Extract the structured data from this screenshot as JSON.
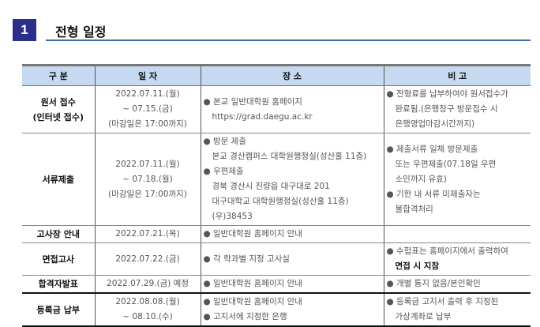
{
  "section": {
    "number": "1",
    "title": "전형 일정"
  },
  "headers": [
    "구 분",
    "일 자",
    "장 소",
    "비 고"
  ],
  "rows": [
    {
      "category": [
        "원서 접수",
        "(인터넷 접수)"
      ],
      "date": [
        "2022.07.11.(월)",
        "~ 07.15.(금)",
        "(마감일은 17:00까지)"
      ],
      "place": [
        {
          "t": "● 본교 일반대학원 홈페이지"
        },
        {
          "t": "https://grad.daegu.ac.kr",
          "i": true
        }
      ],
      "note": [
        {
          "t": "● 전형료를 납부하여야 원서접수가"
        },
        {
          "t": "완료됨.(은행창구 방문접수 시",
          "i": true
        },
        {
          "t": "은행영업마감시간까지)",
          "i": true
        }
      ]
    },
    {
      "category": [
        "서류제출"
      ],
      "date": [
        "2022.07.11.(월)",
        "~ 07.18.(월)",
        "(마감일은 17:00까지)"
      ],
      "place": [
        {
          "t": "● 방문 제출"
        },
        {
          "t": "본교 경산캠퍼스 대학원행정실(성산홀 11층)",
          "i": true
        },
        {
          "t": "● 우편제출"
        },
        {
          "t": "경북 경산시 진량읍 대구대로 201",
          "i": true
        },
        {
          "t": "대구대학교 대학원행정실(성산홀 11층)",
          "i": true
        },
        {
          "t": "(우)38453",
          "i": true
        }
      ],
      "note": [
        {
          "t": "● 제출서류 일체 방문제출"
        },
        {
          "t": "또는 우편제출(07.18일 우편",
          "i": true
        },
        {
          "t": "소인까지 유효)",
          "i": true
        },
        {
          "t": "● 기한 내 서류 미제출자는"
        },
        {
          "t": "불합격처리",
          "i": true
        }
      ]
    },
    {
      "category": [
        "고사장 안내"
      ],
      "date": [
        "2022.07.21.(목)"
      ],
      "place": [
        {
          "t": "● 일반대학원 홈페이지 안내"
        }
      ],
      "note": []
    },
    {
      "category": [
        "면접고사"
      ],
      "date": [
        "2022.07.22.(금)"
      ],
      "place": [
        {
          "t": "● 각 학과별 지정 고사실"
        }
      ],
      "note": [
        {
          "t": "● 수험표는 홈페이지에서 출력하여"
        },
        {
          "t": "면접 시 지참",
          "i": true,
          "b": true
        }
      ]
    },
    {
      "category": [
        "합격자발표"
      ],
      "date": [
        "2022.07.29.(금) 예정"
      ],
      "place": [
        {
          "t": "● 일반대학원 홈페이지 안내"
        }
      ],
      "note": [
        {
          "t": "● 개별 통지 없음/본인확인"
        }
      ]
    },
    {
      "category": [
        "등록금 납부"
      ],
      "date": [
        "2022.08.08.(월)",
        "~ 08.10.(수)"
      ],
      "place": [
        {
          "t": "● 일반대학원 홈페이지 안내"
        },
        {
          "t": "● 고지서에 지정한 은행"
        }
      ],
      "note": [
        {
          "t": "● 등록금 고지서 출력 후 지정된"
        },
        {
          "t": "가상계좌로 납부",
          "i": true
        }
      ]
    }
  ]
}
